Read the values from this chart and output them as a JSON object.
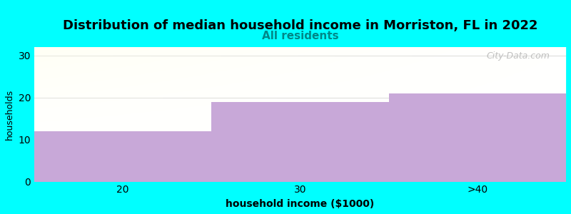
{
  "title": "Distribution of median household income in Morriston, FL in 2022",
  "subtitle": "All residents",
  "categories": [
    "20",
    "30",
    ">40"
  ],
  "values": [
    12,
    19,
    21
  ],
  "bar_color": "#c8a8d8",
  "xlabel": "household income ($1000)",
  "ylabel": "households",
  "ylim": [
    0,
    32
  ],
  "yticks": [
    0,
    10,
    20,
    30
  ],
  "background_color": "#00ffff",
  "plot_bg_top_left": "#e8f5e8",
  "plot_bg_white": "#ffffff",
  "title_fontsize": 13,
  "subtitle_fontsize": 11,
  "subtitle_color": "#008888",
  "watermark": "City-Data.com",
  "grid_color": "#cccccc"
}
